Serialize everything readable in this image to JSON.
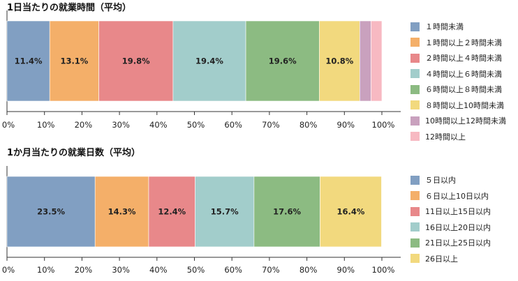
{
  "colors": {
    "blue": "#819FC2",
    "orange": "#F4AF69",
    "red": "#E8888A",
    "teal": "#A2CDCB",
    "green": "#8CBB82",
    "yellow": "#F2D97E",
    "purple": "#C9A1BE",
    "pink": "#F7B9C2"
  },
  "chart_data": [
    {
      "type": "bar",
      "orientation": "horizontal-stacked-100",
      "title": "1日当たりの就業時間（平均）",
      "xlim": [
        0,
        100
      ],
      "x_ticks": [
        "0%",
        "10%",
        "20%",
        "30%",
        "40%",
        "50%",
        "60%",
        "70%",
        "80%",
        "90%",
        "100%"
      ],
      "legend_position": "right",
      "series": [
        {
          "name": "１時間未満",
          "value": 11.4,
          "label": "11.4%",
          "color": "#819FC2"
        },
        {
          "name": "１時間以上２時間未満",
          "value": 13.1,
          "label": "13.1%",
          "color": "#F4AF69"
        },
        {
          "name": "２時間以上４時間未満",
          "value": 19.8,
          "label": "19.8%",
          "color": "#E8888A"
        },
        {
          "name": "４時間以上６時間未満",
          "value": 19.4,
          "label": "19.4%",
          "color": "#A2CDCB"
        },
        {
          "name": "６時間以上８時間未満",
          "value": 19.6,
          "label": "19.6%",
          "color": "#8CBB82"
        },
        {
          "name": "８時間以上10時間未満",
          "value": 10.8,
          "label": "10.8%",
          "color": "#F2D97E"
        },
        {
          "name": "10時間以上12時間未満",
          "value": 3.0,
          "label": "",
          "color": "#C9A1BE"
        },
        {
          "name": "12時間以上",
          "value": 2.9,
          "label": "",
          "color": "#F7B9C2"
        }
      ]
    },
    {
      "type": "bar",
      "orientation": "horizontal-stacked-100",
      "title": "1か月当たりの就業日数（平均）",
      "xlim": [
        0,
        100
      ],
      "x_ticks": [
        "0%",
        "10%",
        "20%",
        "30%",
        "40%",
        "50%",
        "60%",
        "70%",
        "80%",
        "90%",
        "100%"
      ],
      "legend_position": "right",
      "series": [
        {
          "name": "５日以内",
          "value": 23.5,
          "label": "23.5%",
          "color": "#819FC2"
        },
        {
          "name": "６日以上10日以内",
          "value": 14.3,
          "label": "14.3%",
          "color": "#F4AF69"
        },
        {
          "name": "11日以上15日以内",
          "value": 12.4,
          "label": "12.4%",
          "color": "#E8888A"
        },
        {
          "name": "16日以上20日以内",
          "value": 15.7,
          "label": "15.7%",
          "color": "#A2CDCB"
        },
        {
          "name": "21日以上25日以内",
          "value": 17.6,
          "label": "17.6%",
          "color": "#8CBB82"
        },
        {
          "name": "26日以上",
          "value": 16.4,
          "label": "16.4%",
          "color": "#F2D97E"
        }
      ]
    }
  ]
}
